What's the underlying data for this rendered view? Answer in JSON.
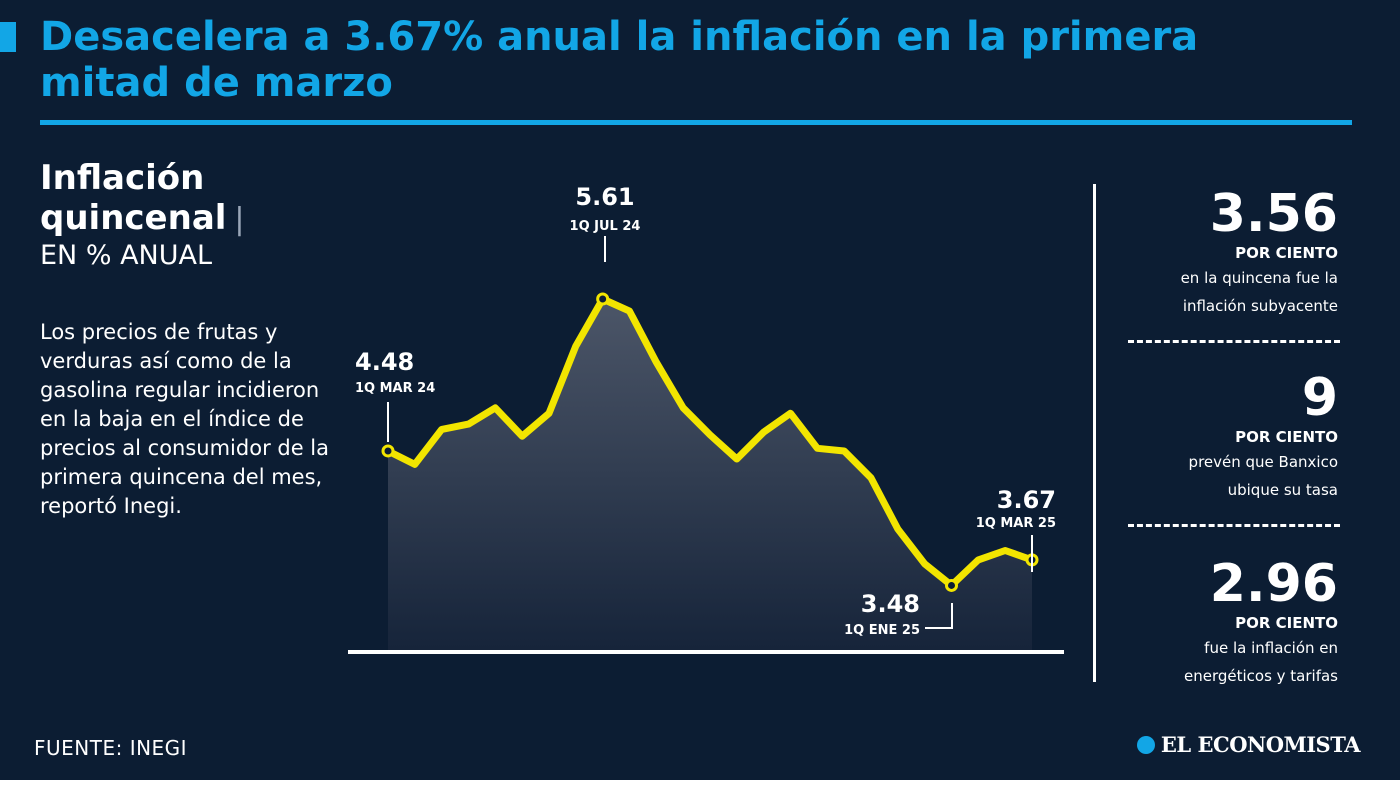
{
  "title": "Desacelera a 3.67% anual la inflación en la primera mitad de marzo",
  "chart_heading": {
    "line1": "Inflación",
    "line2": "quincenal",
    "separator": "|",
    "unit": "EN % ANUAL"
  },
  "description": "Los precios de frutas y verduras así como de la gasolina regular incidieron en la baja en el índice de precios al consumidor de la primera quincena del mes, reportó Inegi.",
  "stats": [
    {
      "value": "3.56",
      "caption": "POR CIENTO",
      "text1": "en la quincena fue la",
      "text2": "inflación subyacente"
    },
    {
      "value": "9",
      "caption": "POR CIENTO",
      "text1": "prevén que Banxico",
      "text2": "ubique su tasa"
    },
    {
      "value": "2.96",
      "caption": "POR CIENTO",
      "text1": "fue la inflación en",
      "text2": "energéticos y tarifas"
    }
  ],
  "source": "FUENTE: INEGI",
  "brand": "EL ECONOMISTA",
  "colors": {
    "background": "#0c1d33",
    "accent": "#12a6e6",
    "line": "#f2e500",
    "text": "#ffffff"
  },
  "chart_data": {
    "type": "area",
    "ylim": [
      3.0,
      5.9
    ],
    "values": [
      4.48,
      4.38,
      4.64,
      4.68,
      4.8,
      4.59,
      4.76,
      5.26,
      5.61,
      5.52,
      5.14,
      4.8,
      4.6,
      4.42,
      4.62,
      4.76,
      4.5,
      4.48,
      4.28,
      3.9,
      3.64,
      3.48,
      3.67,
      3.74,
      3.67
    ],
    "annotations": [
      {
        "index": 0,
        "value": "4.48",
        "period": "1Q MAR 24"
      },
      {
        "index": 8,
        "value": "5.61",
        "period": "1Q JUL 24"
      },
      {
        "index": 21,
        "value": "3.48",
        "period": "1Q ENE 25"
      },
      {
        "index": 24,
        "value": "3.67",
        "period": "1Q MAR 25"
      }
    ]
  }
}
